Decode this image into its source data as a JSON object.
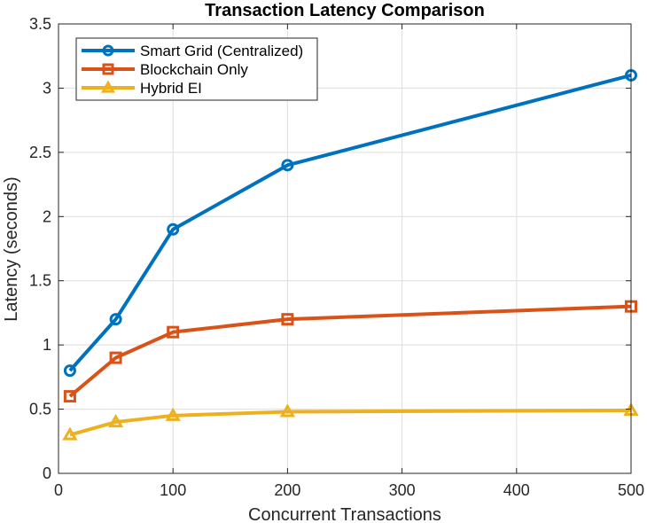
{
  "chart_data": {
    "type": "line",
    "title": "Transaction Latency Comparison",
    "xlabel": "Concurrent Transactions",
    "ylabel": "Latency (seconds)",
    "x": [
      10,
      50,
      100,
      200,
      500
    ],
    "xlim": [
      0,
      500
    ],
    "ylim": [
      0,
      3.5
    ],
    "xticks": [
      0,
      100,
      200,
      300,
      400,
      500
    ],
    "yticks": [
      0,
      0.5,
      1,
      1.5,
      2,
      2.5,
      3,
      3.5
    ],
    "xtick_labels": [
      "0",
      "100",
      "200",
      "300",
      "400",
      "500"
    ],
    "ytick_labels": [
      "0",
      "0.5",
      "1",
      "1.5",
      "2",
      "2.5",
      "3",
      "3.5"
    ],
    "grid": true,
    "legend_position": "top-left",
    "series": [
      {
        "name": "Smart Grid (Centralized)",
        "values": [
          0.8,
          1.2,
          1.9,
          2.4,
          3.1
        ],
        "color": "#0072BD",
        "marker": "circle"
      },
      {
        "name": "Blockchain Only",
        "values": [
          0.6,
          0.9,
          1.1,
          1.2,
          1.3
        ],
        "color": "#D95319",
        "marker": "square"
      },
      {
        "name": "Hybrid EI",
        "values": [
          0.3,
          0.4,
          0.45,
          0.48,
          0.49
        ],
        "color": "#EDB120",
        "marker": "triangle"
      }
    ]
  }
}
